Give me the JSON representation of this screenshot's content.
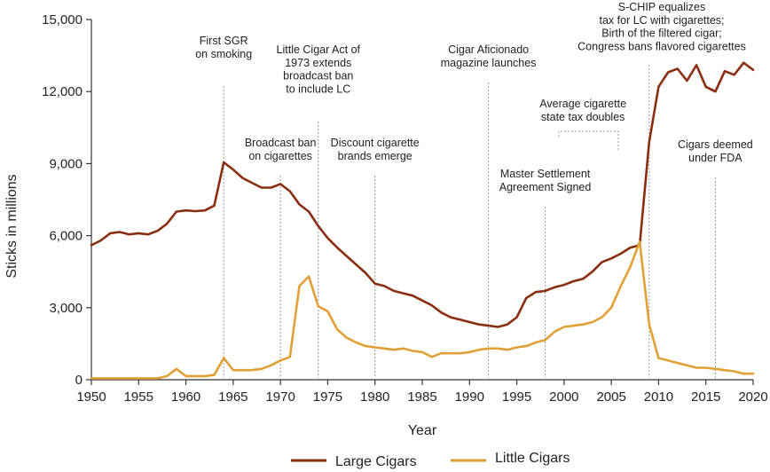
{
  "colors": {
    "large": "#8b2e0f",
    "little": "#e0a035",
    "axis": "#333333",
    "guide": "#999999"
  },
  "chart_data": {
    "type": "line",
    "xlabel": "Year",
    "ylabel": "Sticks in millions",
    "xlim": [
      1950,
      2020
    ],
    "ylim": [
      0,
      15000
    ],
    "xticks": [
      1950,
      1955,
      1960,
      1965,
      1970,
      1975,
      1980,
      1985,
      1990,
      1995,
      2000,
      2005,
      2010,
      2015,
      2020
    ],
    "yticks": [
      0,
      3000,
      6000,
      9000,
      12000,
      15000
    ],
    "ytick_labels": [
      "0",
      "3,000",
      "6,000",
      "9,000",
      "12,000",
      "15,000"
    ],
    "legend": [
      "Large Cigars",
      "Little Cigars"
    ],
    "series": [
      {
        "name": "Large Cigars",
        "x": [
          1950,
          1951,
          1952,
          1953,
          1954,
          1955,
          1956,
          1957,
          1958,
          1959,
          1960,
          1961,
          1962,
          1963,
          1964,
          1965,
          1966,
          1967,
          1968,
          1969,
          1970,
          1971,
          1972,
          1973,
          1974,
          1975,
          1976,
          1977,
          1978,
          1979,
          1980,
          1981,
          1982,
          1983,
          1984,
          1985,
          1986,
          1987,
          1988,
          1989,
          1990,
          1991,
          1992,
          1993,
          1994,
          1995,
          1996,
          1997,
          1998,
          1999,
          2000,
          2001,
          2002,
          2003,
          2004,
          2005,
          2006,
          2007,
          2008,
          2009,
          2010,
          2011,
          2012,
          2013,
          2014,
          2015,
          2016,
          2017,
          2018,
          2019,
          2020
        ],
        "values": [
          5600,
          5800,
          6100,
          6150,
          6050,
          6100,
          6050,
          6200,
          6500,
          7000,
          7050,
          7020,
          7050,
          7250,
          9050,
          8750,
          8400,
          8200,
          8000,
          8000,
          8150,
          7850,
          7300,
          7000,
          6400,
          5900,
          5500,
          5150,
          4800,
          4450,
          4000,
          3900,
          3700,
          3600,
          3500,
          3300,
          3100,
          2800,
          2600,
          2500,
          2400,
          2300,
          2250,
          2200,
          2300,
          2600,
          3400,
          3650,
          3700,
          3850,
          3950,
          4100,
          4200,
          4500,
          4900,
          5050,
          5250,
          5500,
          5600,
          9900,
          12200,
          12800,
          12950,
          12450,
          13100,
          12200,
          12000,
          12850,
          12700,
          13200,
          12900
        ]
      },
      {
        "name": "Little Cigars",
        "x": [
          1950,
          1951,
          1952,
          1953,
          1954,
          1955,
          1956,
          1957,
          1958,
          1959,
          1960,
          1961,
          1962,
          1963,
          1964,
          1965,
          1966,
          1967,
          1968,
          1969,
          1970,
          1971,
          1972,
          1973,
          1974,
          1975,
          1976,
          1977,
          1978,
          1979,
          1980,
          1981,
          1982,
          1983,
          1984,
          1985,
          1986,
          1987,
          1988,
          1989,
          1990,
          1991,
          1992,
          1993,
          1994,
          1995,
          1996,
          1997,
          1998,
          1999,
          2000,
          2001,
          2002,
          2003,
          2004,
          2005,
          2006,
          2007,
          2008,
          2009,
          2010,
          2011,
          2012,
          2013,
          2014,
          2015,
          2016,
          2017,
          2018,
          2019,
          2020
        ],
        "values": [
          60,
          60,
          60,
          60,
          60,
          60,
          60,
          60,
          150,
          450,
          150,
          150,
          150,
          200,
          900,
          400,
          400,
          400,
          450,
          600,
          800,
          950,
          3900,
          4300,
          3050,
          2850,
          2100,
          1750,
          1550,
          1400,
          1350,
          1300,
          1250,
          1300,
          1200,
          1150,
          950,
          1100,
          1100,
          1100,
          1150,
          1250,
          1300,
          1300,
          1250,
          1350,
          1400,
          1550,
          1650,
          2000,
          2200,
          2250,
          2300,
          2400,
          2600,
          3000,
          3900,
          4700,
          5750,
          2300,
          900,
          800,
          700,
          600,
          500,
          500,
          450,
          400,
          350,
          250,
          250
        ]
      }
    ],
    "annotations": [
      {
        "x": 1964,
        "lines": [
          "First SGR",
          "on smoking"
        ]
      },
      {
        "x": 1970,
        "lines": [
          "Broadcast ban",
          "on cigarettes"
        ]
      },
      {
        "x": 1974,
        "lines": [
          "Little Cigar Act of",
          "1973 extends",
          "broadcast ban",
          "to include LC"
        ]
      },
      {
        "x": 1980,
        "lines": [
          "Discount cigarette",
          "brands emerge"
        ]
      },
      {
        "x": 1992,
        "lines": [
          "Cigar Aficionado",
          "magazine launches"
        ]
      },
      {
        "x": 1998,
        "lines": [
          "Master Settlement",
          "Agreement Signed"
        ]
      },
      {
        "x": 2002,
        "lines": [
          "Average cigarette",
          "state tax doubles"
        ]
      },
      {
        "x": 2009,
        "lines": [
          "S-CHIP equalizes",
          "tax for LC with cigarettes;",
          "Birth of the filtered cigar;",
          "Congress bans flavored cigarettes"
        ]
      },
      {
        "x": 2016,
        "lines": [
          "Cigars deemed",
          "under FDA"
        ]
      }
    ]
  }
}
